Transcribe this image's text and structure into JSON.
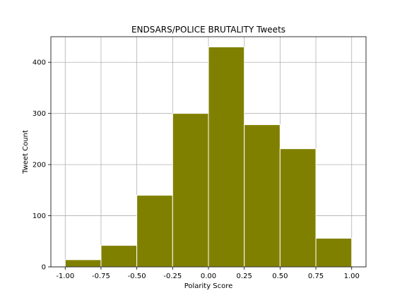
{
  "chart_data": {
    "type": "bar",
    "title": "ENDSARS/POLICE BRUTALITY Tweets",
    "xlabel": "Polarity Score",
    "ylabel": "Tweet Count",
    "bins": [
      {
        "x0": -1.0,
        "x1": -0.75,
        "value": 14
      },
      {
        "x0": -0.75,
        "x1": -0.5,
        "value": 42
      },
      {
        "x0": -0.5,
        "x1": -0.25,
        "value": 140
      },
      {
        "x0": -0.25,
        "x1": 0.0,
        "value": 300
      },
      {
        "x0": 0.0,
        "x1": 0.25,
        "value": 430
      },
      {
        "x0": 0.25,
        "x1": 0.5,
        "value": 278
      },
      {
        "x0": 0.5,
        "x1": 0.75,
        "value": 231
      },
      {
        "x0": 0.75,
        "x1": 1.0,
        "value": 56
      }
    ],
    "xlim": [
      -1.1,
      1.1
    ],
    "ylim": [
      0,
      450
    ],
    "xticks": [
      "-1.00",
      "-0.75",
      "-0.50",
      "-0.25",
      "0.00",
      "0.25",
      "0.50",
      "0.75",
      "1.00"
    ],
    "xtick_values": [
      -1.0,
      -0.75,
      -0.5,
      -0.25,
      0.0,
      0.25,
      0.5,
      0.75,
      1.0
    ],
    "yticks": [
      "0",
      "100",
      "200",
      "300",
      "400"
    ],
    "ytick_values": [
      0,
      100,
      200,
      300,
      400
    ],
    "grid": true,
    "colors": {
      "bar": "#808000",
      "bar_edge": "#ffffff",
      "grid": "#b0b0b0",
      "axis": "#000000"
    }
  }
}
